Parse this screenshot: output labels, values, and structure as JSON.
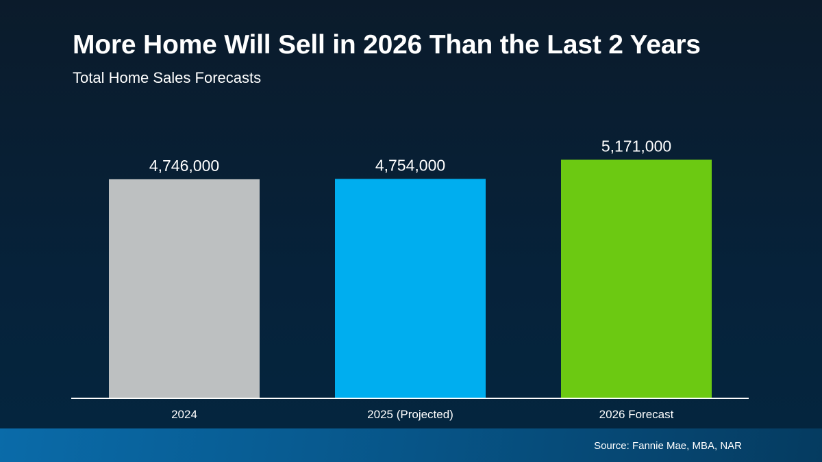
{
  "chart_data": {
    "type": "bar",
    "title": "More Home Will Sell in 2026 Than the Last 2 Years",
    "subtitle": "Total Home Sales Forecasts",
    "categories": [
      "2024",
      "2025 (Projected)",
      "2026 Forecast"
    ],
    "values": [
      4746000,
      4754000,
      5171000
    ],
    "data_labels": [
      "4,746,000",
      "4,754,000",
      "5,171,000"
    ],
    "colors": [
      "#bdc0c1",
      "#00aeef",
      "#6cc912"
    ],
    "xlabel": "",
    "ylabel": "",
    "ylim": [
      0,
      6500000
    ],
    "grid": false
  },
  "source": "Source: Fannie Mae, MBA, NAR"
}
